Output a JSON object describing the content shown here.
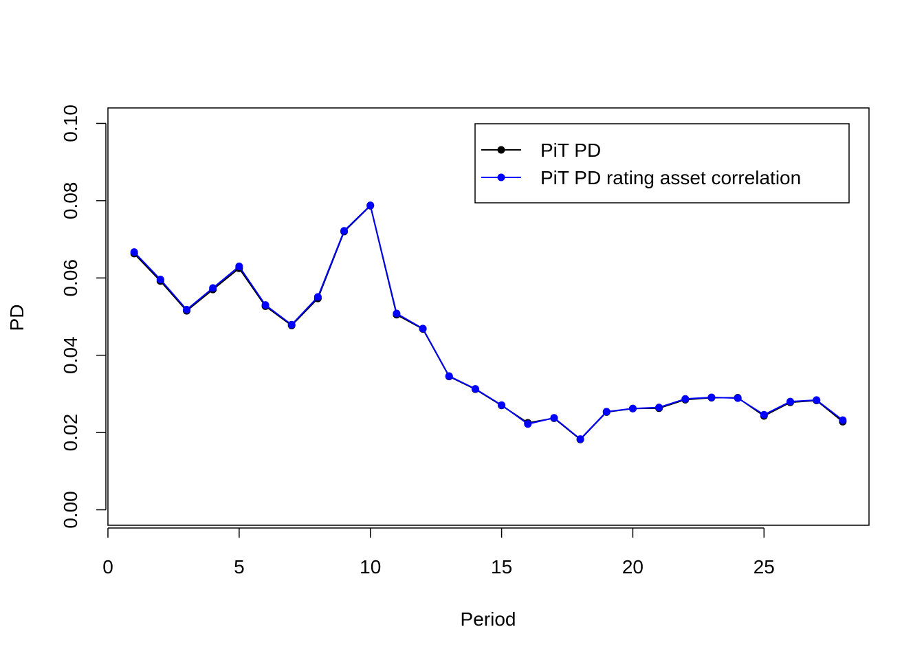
{
  "chart_data": {
    "type": "line",
    "xlabel": "Period",
    "ylabel": "PD",
    "xlim": [
      0,
      29
    ],
    "ylim": [
      -0.004,
      0.104
    ],
    "xticks": [
      0,
      5,
      10,
      15,
      20,
      25
    ],
    "xtick_labels": [
      "0",
      "5",
      "10",
      "15",
      "20",
      "25"
    ],
    "yticks": [
      0,
      0.02,
      0.04,
      0.06,
      0.08,
      0.1
    ],
    "ytick_labels": [
      "0.00",
      "0.02",
      "0.04",
      "0.06",
      "0.08",
      "0.10"
    ],
    "grid": false,
    "legend_position": "top-right",
    "x": [
      1,
      2,
      3,
      4,
      5,
      6,
      7,
      8,
      9,
      10,
      11,
      12,
      13,
      14,
      15,
      16,
      17,
      18,
      19,
      20,
      21,
      22,
      23,
      24,
      25,
      26,
      27,
      28
    ],
    "series": [
      {
        "name": "PiT PD",
        "color": "#000000",
        "values": [
          0.0663,
          0.0592,
          0.0515,
          0.057,
          0.0625,
          0.0527,
          0.0477,
          0.0547,
          0.072,
          0.0787,
          0.0505,
          0.0468,
          0.0345,
          0.0312,
          0.027,
          0.0225,
          0.0237,
          0.0182,
          0.0253,
          0.0262,
          0.0263,
          0.0285,
          0.029,
          0.029,
          0.0243,
          0.0278,
          0.0283,
          0.0228
        ]
      },
      {
        "name": "PiT PD rating asset correlation",
        "color": "#0000ff",
        "values": [
          0.0667,
          0.0596,
          0.0518,
          0.0574,
          0.063,
          0.053,
          0.0479,
          0.0551,
          0.0722,
          0.0788,
          0.0508,
          0.0469,
          0.0346,
          0.0313,
          0.0271,
          0.0222,
          0.0238,
          0.0183,
          0.0254,
          0.0262,
          0.0265,
          0.0287,
          0.0291,
          0.0289,
          0.0246,
          0.028,
          0.0284,
          0.0232
        ]
      }
    ]
  }
}
